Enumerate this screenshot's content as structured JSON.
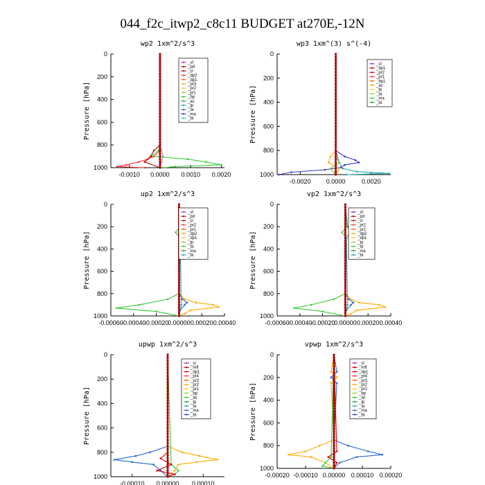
{
  "figure": {
    "title": "044_f2c_itwp2_c8c11  BUDGET at270E,-12N"
  },
  "chart_data": [
    {
      "type": "line",
      "title": "wp2   1xm^2/s^3",
      "ylabel": "Pressure [hPa]",
      "xlim": [
        -0.0016,
        0.0021
      ],
      "ylim": [
        1000,
        0
      ],
      "xticks": [
        -0.001,
        0.0,
        0.001,
        0.002
      ],
      "xtick_labels": [
        "-0.0010",
        "0.0000",
        "0.0010",
        "0.0020"
      ],
      "yticks": [
        0,
        200,
        400,
        600,
        800,
        1000
      ],
      "ytick_labels": [
        "0",
        "200",
        "400",
        "600",
        "800",
        "1000"
      ],
      "legend": [
        "_sf",
        "_pd",
        "_cl",
        "_dp2",
        "_dp1",
        "_pr3",
        "_pr2",
        "_pr1",
        "_bp",
        "_ac",
        "_tp",
        "_ta",
        "_ma",
        "_bt"
      ],
      "legend_position": "top-right",
      "series": [
        {
          "name": "_pr1",
          "color": "#33cc33",
          "pressure": [
            0,
            700,
            800,
            850,
            900,
            925,
            950,
            975,
            990,
            1000
          ],
          "values": [
            0,
            0,
            0,
            -5e-05,
            -0.0003,
            0.0009,
            0.0015,
            0.002,
            0.0005,
            0.0001
          ]
        },
        {
          "name": "_dp1",
          "color": "#ff3333",
          "pressure": [
            0,
            700,
            800,
            850,
            900,
            925,
            950,
            975,
            990,
            1000
          ],
          "values": [
            0,
            0,
            0,
            0,
            -0.0002,
            -0.0004,
            -0.0007,
            -0.0011,
            -0.0014,
            -0.0005
          ]
        },
        {
          "name": "_pd",
          "color": "#aa0000",
          "pressure": [
            0,
            800,
            850,
            900,
            950,
            1000
          ],
          "values": [
            0,
            0,
            -0.0002,
            -0.0003,
            -0.0005,
            0
          ]
        },
        {
          "name": "_ac",
          "color": "#999999",
          "pressure": [
            0,
            800,
            900,
            950,
            1000
          ],
          "values": [
            0,
            0,
            0.0001,
            5e-05,
            0
          ]
        },
        {
          "name": "_bt",
          "color": "#6633cc",
          "pressure": [
            0,
            500,
            1000
          ],
          "values": [
            0,
            0,
            0
          ]
        }
      ]
    },
    {
      "type": "line",
      "title": "wp3   1xm^(3) s^(-4)",
      "ylabel": "Pressure [hPa]",
      "xlim": [
        -0.0033,
        0.0031
      ],
      "ylim": [
        1000,
        0
      ],
      "xticks": [
        -0.002,
        0.0,
        0.002
      ],
      "xtick_labels": [
        "-0.0020",
        "0.0000",
        "0.0020"
      ],
      "yticks": [
        0,
        200,
        400,
        600,
        800,
        1000
      ],
      "ytick_labels": [
        "0",
        "200",
        "400",
        "600",
        "800",
        "1000"
      ],
      "legend": [
        "_cl",
        "_dp1",
        "_pr2",
        "_pr1",
        "_bp1",
        "_ac",
        "_tp",
        "_ta",
        "_ma",
        "_bt"
      ],
      "legend_position": "top-right",
      "series": [
        {
          "name": "_ta",
          "color": "#3333cc",
          "pressure": [
            0,
            800,
            850,
            880,
            900,
            920,
            940,
            960,
            980,
            1000
          ],
          "values": [
            0,
            0,
            0.0005,
            0.0011,
            0.0013,
            0.0005,
            0.0003,
            -0.0006,
            -0.0025,
            -0.0032
          ]
        },
        {
          "name": "_tp",
          "color": "#22aaaa",
          "pressure": [
            0,
            800,
            900,
            950,
            975,
            990,
            1000
          ],
          "values": [
            0,
            0,
            0.0002,
            0.0004,
            0.0012,
            0.003,
            0.0006
          ]
        },
        {
          "name": "_pr1",
          "color": "#ffaa00",
          "pressure": [
            0,
            800,
            850,
            900,
            950,
            1000
          ],
          "values": [
            0,
            0,
            -0.0003,
            -0.0004,
            0.0002,
            0
          ]
        },
        {
          "name": "_cl",
          "color": "#66cc33",
          "pressure": [
            0,
            850,
            900,
            950,
            1000
          ],
          "values": [
            0,
            0,
            0.0002,
            -0.0003,
            0
          ]
        },
        {
          "name": "_dp1",
          "color": "#cc0000",
          "pressure": [
            0,
            500,
            1000
          ],
          "values": [
            0,
            0,
            0
          ]
        }
      ]
    },
    {
      "type": "line",
      "title": "up2   1xm^2/s^3",
      "ylabel": "Pressure [hPa]",
      "xlim": [
        -0.0006,
        0.0004
      ],
      "ylim": [
        1000,
        0
      ],
      "xticks": [
        -0.0006,
        -0.0004,
        -0.0002,
        0.0,
        0.0002,
        0.0004
      ],
      "xtick_labels": [
        "-0.00060",
        "-0.00040",
        "-0.00020",
        "0.00000",
        "0.00020",
        "0.00040"
      ],
      "yticks": [
        0,
        200,
        400,
        600,
        800,
        1000
      ],
      "ytick_labels": [
        "0",
        "200",
        "400",
        "600",
        "800",
        "1000"
      ],
      "legend": [
        "_sf",
        "_pd",
        "_cl",
        "_pr2",
        "_pr1",
        "_dp2",
        "_dp1",
        "_tp",
        "_ta",
        "_ma",
        "_bt"
      ],
      "legend_position": "top-right",
      "series": [
        {
          "name": "_pr1",
          "color": "#ffaa00",
          "pressure": [
            0,
            800,
            850,
            880,
            900,
            920,
            950,
            980,
            1000
          ],
          "values": [
            0,
            0,
            5e-05,
            0.00015,
            0.0003,
            0.00035,
            0.0001,
            5e-05,
            0
          ]
        },
        {
          "name": "_dp1",
          "color": "#33cc33",
          "pressure": [
            0,
            200,
            250,
            300,
            800,
            850,
            900,
            930,
            960,
            1000
          ],
          "values": [
            0,
            1e-05,
            -3e-05,
            1e-05,
            0,
            -0.0001,
            -0.00035,
            -0.00055,
            -0.0002,
            0
          ]
        },
        {
          "name": "_tp",
          "color": "#2266cc",
          "pressure": [
            0,
            800,
            850,
            880,
            900,
            950,
            1000
          ],
          "values": [
            0,
            0,
            3e-05,
            7e-05,
            5e-05,
            1e-05,
            0
          ]
        },
        {
          "name": "_ma",
          "color": "#22aaaa",
          "pressure": [
            0,
            200,
            250,
            300,
            900,
            1000
          ],
          "values": [
            0,
            2e-05,
            4e-05,
            1e-05,
            2e-05,
            0
          ]
        },
        {
          "name": "_pd",
          "color": "#cc0000",
          "pressure": [
            0,
            500,
            1000
          ],
          "values": [
            0,
            0,
            0
          ]
        }
      ]
    },
    {
      "type": "line",
      "title": "vp2   1xm^2/s^3",
      "ylabel": "Pressure [hPa]",
      "xlim": [
        -0.0006,
        0.0004
      ],
      "ylim": [
        1000,
        0
      ],
      "xticks": [
        -0.0006,
        -0.0004,
        -0.0002,
        0.0,
        0.0002,
        0.0004
      ],
      "xtick_labels": [
        "-0.00060",
        "-0.00040",
        "-0.00020",
        "0.00000",
        "0.00020",
        "0.00040"
      ],
      "yticks": [
        0,
        200,
        400,
        600,
        800,
        1000
      ],
      "ytick_labels": [
        "0",
        "200",
        "400",
        "600",
        "800",
        "1000"
      ],
      "legend": [
        "_sf",
        "_pd",
        "_cl",
        "_pr2",
        "_pr1",
        "_dp2",
        "_dp1",
        "_tp",
        "_ta",
        "_ma",
        "_bt"
      ],
      "legend_position": "top-right",
      "series": [
        {
          "name": "_pr1",
          "color": "#ffaa00",
          "pressure": [
            0,
            800,
            850,
            880,
            900,
            920,
            950,
            980,
            1000
          ],
          "values": [
            0,
            0,
            5e-05,
            0.00012,
            0.0003,
            0.00035,
            0.0001,
            5e-05,
            0
          ]
        },
        {
          "name": "_dp1",
          "color": "#33cc33",
          "pressure": [
            0,
            200,
            250,
            300,
            800,
            850,
            900,
            930,
            960,
            1000
          ],
          "values": [
            0,
            1e-05,
            -3e-05,
            1e-05,
            0,
            -0.0001,
            -0.0003,
            -0.00045,
            -0.0002,
            0
          ]
        },
        {
          "name": "_tp",
          "color": "#2266cc",
          "pressure": [
            0,
            800,
            850,
            880,
            900,
            950,
            1000
          ],
          "values": [
            0,
            0,
            3e-05,
            7e-05,
            5e-05,
            1e-05,
            0
          ]
        },
        {
          "name": "_ma",
          "color": "#22aaaa",
          "pressure": [
            0,
            200,
            250,
            300,
            900,
            1000
          ],
          "values": [
            0,
            2e-05,
            4e-05,
            1e-05,
            2e-05,
            0
          ]
        },
        {
          "name": "_pd",
          "color": "#cc0000",
          "pressure": [
            0,
            500,
            1000
          ],
          "values": [
            0,
            0,
            0
          ]
        }
      ]
    },
    {
      "type": "line",
      "title": "upwp   1xm^2/s^3",
      "ylabel": "Pressure [hPa]",
      "xlim": [
        -0.00016,
        0.00016
      ],
      "ylim": [
        1000,
        0
      ],
      "xticks": [
        -0.0001,
        0.0,
        0.0001
      ],
      "xtick_labels": [
        "-0.00010",
        "0.00000",
        "0.00010"
      ],
      "yticks": [
        0,
        200,
        400,
        600,
        800,
        1000
      ],
      "ytick_labels": [
        "0",
        "200",
        "400",
        "600",
        "800",
        "1000"
      ],
      "legend": [
        "_cl",
        "_mfl",
        "_dp1",
        "_pr4",
        "_pr3",
        "_pr2",
        "_pr1",
        "_bp",
        "_ac",
        "_tp",
        "_ta",
        "_ma",
        "_bt"
      ],
      "legend_position": "top-right",
      "series": [
        {
          "name": "_ta",
          "color": "#2266cc",
          "pressure": [
            0,
            750,
            800,
            830,
            860,
            880,
            900,
            950,
            1000
          ],
          "values": [
            0,
            0,
            -5e-05,
            -9e-05,
            -0.00015,
            -0.0001,
            -4e-05,
            -2e-05,
            0
          ]
        },
        {
          "name": "_pr1",
          "color": "#ffaa00",
          "pressure": [
            0,
            750,
            800,
            830,
            860,
            880,
            900,
            950,
            1000
          ],
          "values": [
            0,
            0,
            4e-05,
            9e-05,
            0.00014,
            8e-05,
            3e-05,
            2e-05,
            0
          ]
        },
        {
          "name": "_ac",
          "color": "#33cc33",
          "pressure": [
            0,
            900,
            950,
            980,
            1000
          ],
          "values": [
            0,
            1e-05,
            3e-05,
            2e-05,
            0
          ]
        },
        {
          "name": "_dp1",
          "color": "#cc0000",
          "pressure": [
            0,
            800,
            850,
            900,
            950,
            980,
            1000
          ],
          "values": [
            0,
            0,
            -2e-05,
            1e-05,
            -3e-05,
            2e-05,
            0
          ]
        },
        {
          "name": "_cl",
          "color": "#aa22aa",
          "pressure": [
            0,
            500,
            1000
          ],
          "values": [
            0,
            0,
            0
          ]
        }
      ]
    },
    {
      "type": "line",
      "title": "vpwp   1xm^2/s^3",
      "ylabel": "Pressure [hPa]",
      "xlim": [
        -0.0002,
        0.0002
      ],
      "ylim": [
        1000,
        0
      ],
      "xticks": [
        -0.0002,
        -0.0001,
        0.0,
        0.0001,
        0.0002
      ],
      "xtick_labels": [
        "-0.00020",
        "-0.00010",
        "0.00000",
        "0.00010",
        "0.00020"
      ],
      "yticks": [
        0,
        200,
        400,
        600,
        800,
        1000
      ],
      "ytick_labels": [
        "0",
        "200",
        "400",
        "600",
        "800",
        "1000"
      ],
      "legend": [
        "_cl",
        "_mfl",
        "_dp1",
        "_pr4",
        "_pr3",
        "_pr2",
        "_pr1",
        "_bp",
        "_ac",
        "_tp",
        "_ta",
        "_ma",
        "_bt"
      ],
      "legend_position": "top-right",
      "series": [
        {
          "name": "_ta",
          "color": "#2266cc",
          "pressure": [
            0,
            150,
            200,
            250,
            750,
            800,
            850,
            880,
            900,
            950,
            1000
          ],
          "values": [
            0,
            1e-05,
            -1e-05,
            1e-05,
            0,
            5e-05,
            0.00012,
            0.00017,
            8e-05,
            2e-05,
            0
          ]
        },
        {
          "name": "_pr1",
          "color": "#ffaa00",
          "pressure": [
            0,
            150,
            200,
            250,
            750,
            800,
            850,
            880,
            900,
            950,
            1000
          ],
          "values": [
            0,
            -1e-05,
            1e-05,
            -1e-05,
            0,
            -5e-05,
            -0.0001,
            -0.00016,
            -8e-05,
            -3e-05,
            0
          ]
        },
        {
          "name": "_ac",
          "color": "#33cc33",
          "pressure": [
            0,
            900,
            950,
            980,
            1000
          ],
          "values": [
            0,
            -1e-05,
            -3e-05,
            -4e-05,
            0
          ]
        },
        {
          "name": "_dp1",
          "color": "#cc0000",
          "pressure": [
            0,
            850,
            900,
            950,
            1000
          ],
          "values": [
            0,
            1e-05,
            -2e-05,
            1e-05,
            0
          ]
        },
        {
          "name": "_cl",
          "color": "#aa22aa",
          "pressure": [
            0,
            500,
            1000
          ],
          "values": [
            0,
            0,
            0
          ]
        }
      ]
    }
  ]
}
